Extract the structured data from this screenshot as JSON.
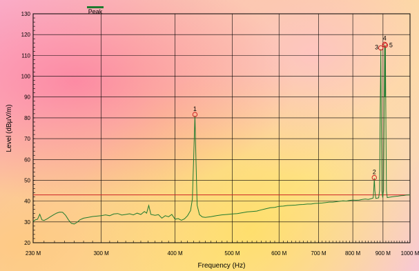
{
  "chart_data": {
    "type": "line",
    "xlabel": "Frequency (Hz)",
    "ylabel": "Level (dBµV/m)",
    "x_scale": "log",
    "xlim": [
      230000000,
      1000000000
    ],
    "ylim": [
      20,
      130
    ],
    "grid": true,
    "legend_position": "top-left",
    "x_ticks": [
      {
        "value": 230000000,
        "label": "230 M"
      },
      {
        "value": 300000000,
        "label": "300 M"
      },
      {
        "value": 400000000,
        "label": "400 M"
      },
      {
        "value": 500000000,
        "label": "500 M"
      },
      {
        "value": 600000000,
        "label": "600 M"
      },
      {
        "value": 700000000,
        "label": "700 M"
      },
      {
        "value": 800000000,
        "label": "800 M"
      },
      {
        "value": 900000000,
        "label": "900 M"
      },
      {
        "value": 1000000000,
        "label": "1000 M"
      }
    ],
    "y_ticks": [
      20,
      30,
      40,
      50,
      60,
      70,
      80,
      90,
      100,
      110,
      120,
      130
    ],
    "limit_line": {
      "value": 43,
      "color": "#cc2222"
    },
    "series": [
      {
        "name": "Peak",
        "color": "#1f7a2e",
        "points": [
          [
            230,
            30.2
          ],
          [
            232,
            31.0
          ],
          [
            234,
            31.3
          ],
          [
            236,
            33.7
          ],
          [
            238,
            31.0
          ],
          [
            240,
            30.7
          ],
          [
            243,
            31.5
          ],
          [
            246,
            32.5
          ],
          [
            249,
            33.4
          ],
          [
            252,
            34.2
          ],
          [
            255,
            34.7
          ],
          [
            258,
            34.6
          ],
          [
            261,
            33.2
          ],
          [
            264,
            31.0
          ],
          [
            267,
            29.3
          ],
          [
            270,
            29.0
          ],
          [
            273,
            29.8
          ],
          [
            276,
            31.0
          ],
          [
            280,
            31.8
          ],
          [
            285,
            32.2
          ],
          [
            290,
            32.6
          ],
          [
            295,
            32.8
          ],
          [
            300,
            33.0
          ],
          [
            305,
            33.4
          ],
          [
            310,
            33.0
          ],
          [
            315,
            33.8
          ],
          [
            320,
            34.0
          ],
          [
            325,
            33.3
          ],
          [
            330,
            33.6
          ],
          [
            335,
            33.9
          ],
          [
            340,
            33.4
          ],
          [
            345,
            34.2
          ],
          [
            350,
            33.6
          ],
          [
            355,
            35.0
          ],
          [
            358,
            34.2
          ],
          [
            361,
            37.9
          ],
          [
            364,
            33.6
          ],
          [
            370,
            33.2
          ],
          [
            375,
            33.5
          ],
          [
            380,
            31.8
          ],
          [
            385,
            33.0
          ],
          [
            390,
            32.5
          ],
          [
            395,
            33.6
          ],
          [
            400,
            31.3
          ],
          [
            405,
            31.6
          ],
          [
            410,
            30.8
          ],
          [
            415,
            31.5
          ],
          [
            420,
            33.0
          ],
          [
            425,
            35.5
          ],
          [
            428,
            41.0
          ],
          [
            430,
            60.0
          ],
          [
            432.3,
            81.0
          ],
          [
            434,
            60.0
          ],
          [
            436,
            38.0
          ],
          [
            440,
            33.5
          ],
          [
            445,
            32.4
          ],
          [
            450,
            32.2
          ],
          [
            460,
            32.5
          ],
          [
            470,
            33.0
          ],
          [
            480,
            33.4
          ],
          [
            490,
            33.6
          ],
          [
            500,
            33.8
          ],
          [
            510,
            34.0
          ],
          [
            520,
            34.4
          ],
          [
            530,
            34.8
          ],
          [
            540,
            35.0
          ],
          [
            550,
            35.2
          ],
          [
            560,
            35.8
          ],
          [
            570,
            36.3
          ],
          [
            580,
            36.8
          ],
          [
            590,
            37.0
          ],
          [
            600,
            37.5
          ],
          [
            610,
            37.6
          ],
          [
            620,
            37.9
          ],
          [
            630,
            38.0
          ],
          [
            640,
            38.1
          ],
          [
            650,
            38.3
          ],
          [
            660,
            38.4
          ],
          [
            670,
            38.6
          ],
          [
            680,
            38.6
          ],
          [
            690,
            38.9
          ],
          [
            700,
            39.0
          ],
          [
            710,
            39.1
          ],
          [
            720,
            39.3
          ],
          [
            730,
            39.5
          ],
          [
            740,
            39.5
          ],
          [
            750,
            39.7
          ],
          [
            760,
            39.9
          ],
          [
            770,
            40.1
          ],
          [
            780,
            40.0
          ],
          [
            790,
            40.3
          ],
          [
            800,
            40.5
          ],
          [
            810,
            40.4
          ],
          [
            820,
            40.5
          ],
          [
            830,
            40.8
          ],
          [
            840,
            41.0
          ],
          [
            850,
            40.8
          ],
          [
            860,
            41.2
          ],
          [
            866,
            41.5
          ],
          [
            868,
            45.0
          ],
          [
            870,
            51.0
          ],
          [
            872,
            45.0
          ],
          [
            875,
            41.3
          ],
          [
            880,
            41.4
          ],
          [
            885,
            41.6
          ],
          [
            888,
            45.0
          ],
          [
            890,
            80.0
          ],
          [
            892.3,
            113.0
          ],
          [
            894,
            80.0
          ],
          [
            896,
            45.0
          ],
          [
            899,
            41.7
          ],
          [
            902,
            45.0
          ],
          [
            904,
            80.0
          ],
          [
            905.9,
            115.2
          ],
          [
            907,
            90.0
          ],
          [
            908.5,
            114.5
          ],
          [
            910,
            80.0
          ],
          [
            912,
            45.0
          ],
          [
            915,
            41.7
          ],
          [
            925,
            41.9
          ],
          [
            935,
            42.1
          ],
          [
            945,
            42.3
          ],
          [
            955,
            42.4
          ],
          [
            965,
            42.6
          ],
          [
            975,
            42.7
          ],
          [
            985,
            42.9
          ],
          [
            1000,
            43.0
          ]
        ]
      }
    ],
    "markers": [
      {
        "label": "1",
        "freq_mhz": 432.3,
        "level": 81.6
      },
      {
        "label": "2",
        "freq_mhz": 870,
        "level": 51.3
      },
      {
        "label": "3",
        "freq_mhz": 892.3,
        "level": 113.6
      },
      {
        "label": "4",
        "freq_mhz": 905.9,
        "level": 115.3
      },
      {
        "label": "5",
        "freq_mhz": 908.5,
        "level": 114.9
      }
    ]
  }
}
